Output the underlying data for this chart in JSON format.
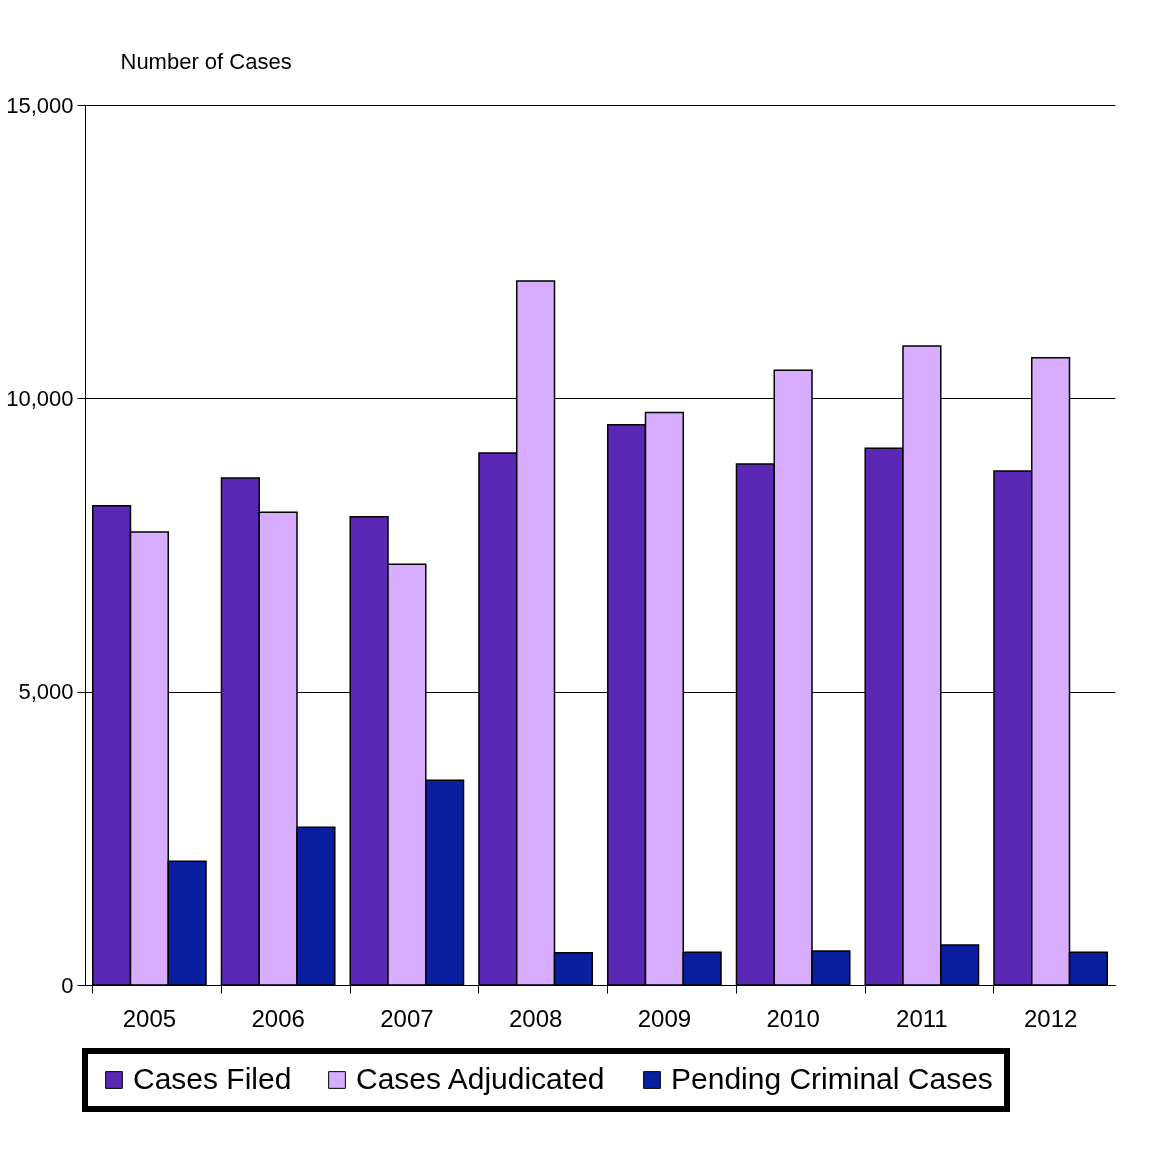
{
  "chart_data": {
    "type": "bar",
    "ylabel": "Number of Cases",
    "categories": [
      "2005",
      "2006",
      "2007",
      "2008",
      "2009",
      "2010",
      "2011",
      "2012"
    ],
    "series": [
      {
        "name": "Cases Filed",
        "color": "#5a28b4",
        "values": [
          8170,
          8640,
          7980,
          9070,
          9550,
          8880,
          9150,
          8760
        ]
      },
      {
        "name": "Cases Adjudicated",
        "color": "#d8acff",
        "values": [
          7720,
          8060,
          7170,
          12000,
          9760,
          10480,
          10890,
          10690
        ]
      },
      {
        "name": "Pending Criminal Cases",
        "color": "#0a1ea0",
        "values": [
          2110,
          2690,
          3490,
          550,
          560,
          580,
          680,
          560
        ]
      }
    ],
    "ylim": [
      0,
      15000
    ],
    "yticks": [
      {
        "value": 0,
        "label": "0"
      },
      {
        "value": 5000,
        "label": "5,000"
      },
      {
        "value": 10000,
        "label": "10,000"
      },
      {
        "value": 15000,
        "label": "15,000"
      }
    ],
    "grid": "y",
    "legend": "bottom"
  }
}
